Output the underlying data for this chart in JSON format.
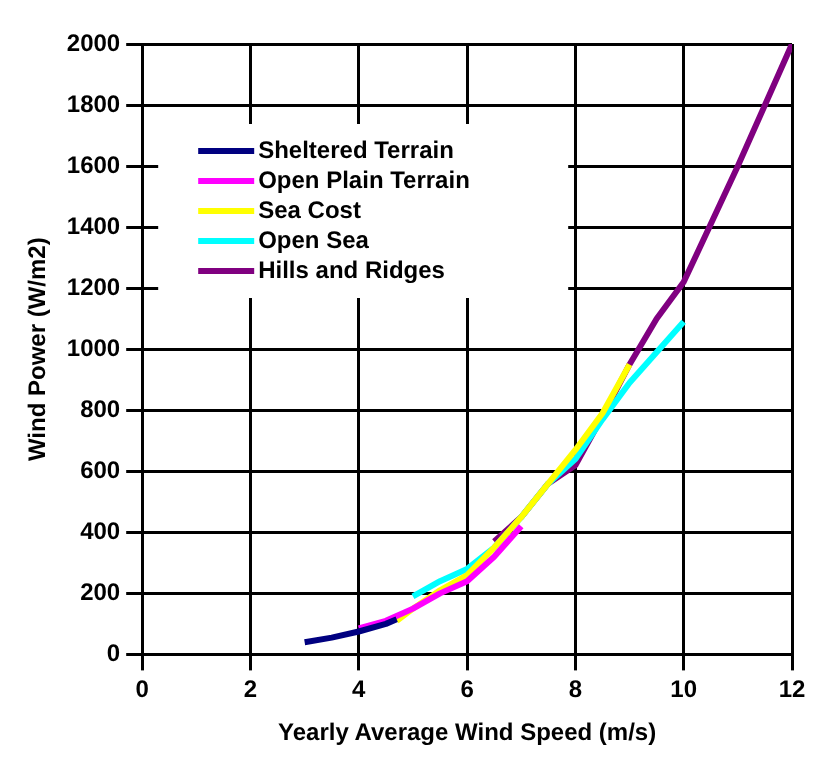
{
  "chart_data": {
    "type": "line",
    "xlabel": "Yearly Average Wind Speed (m/s)",
    "ylabel": "Wind Power (W/m2)",
    "xlim": [
      0,
      12
    ],
    "xticks": [
      0,
      2,
      4,
      6,
      8,
      10,
      12
    ],
    "ylim": [
      0,
      2000
    ],
    "yticks": [
      0,
      200,
      400,
      600,
      800,
      1000,
      1200,
      1400,
      1600,
      1800,
      2000
    ],
    "grid": true,
    "legend": "top left",
    "marker": "none",
    "line_style": "solid",
    "series": [
      {
        "name": "Sheltered Terrain",
        "color": "#000080",
        "x": [
          3,
          3.5,
          4,
          4.5,
          4.7
        ],
        "values": [
          40,
          55,
          75,
          100,
          115
        ]
      },
      {
        "name": "Open Plain Terrain",
        "color": "#ff00ff",
        "x": [
          4,
          4.5,
          5,
          5.5,
          6,
          6.5,
          7
        ],
        "values": [
          85,
          110,
          150,
          200,
          240,
          320,
          420
        ]
      },
      {
        "name": "Sea Cost",
        "color": "#ffff00",
        "x": [
          4.7,
          5,
          5.5,
          6,
          6.5,
          7,
          7.5,
          8,
          8.5,
          9
        ],
        "values": [
          110,
          150,
          210,
          260,
          350,
          450,
          560,
          670,
          790,
          950
        ]
      },
      {
        "name": "Open Sea",
        "color": "#00ffff",
        "x": [
          5,
          5.5,
          6,
          6.5,
          7,
          7.5,
          8,
          8.5,
          9,
          9.5,
          10
        ],
        "values": [
          190,
          240,
          280,
          350,
          450,
          560,
          640,
          770,
          890,
          990,
          1090
        ]
      },
      {
        "name": "Hills and Ridges",
        "color": "#800080",
        "x": [
          6.5,
          7,
          7.5,
          8,
          8.5,
          9,
          9.5,
          10,
          11,
          12
        ],
        "values": [
          370,
          450,
          560,
          620,
          780,
          950,
          1100,
          1220,
          1600,
          2000
        ]
      }
    ]
  }
}
